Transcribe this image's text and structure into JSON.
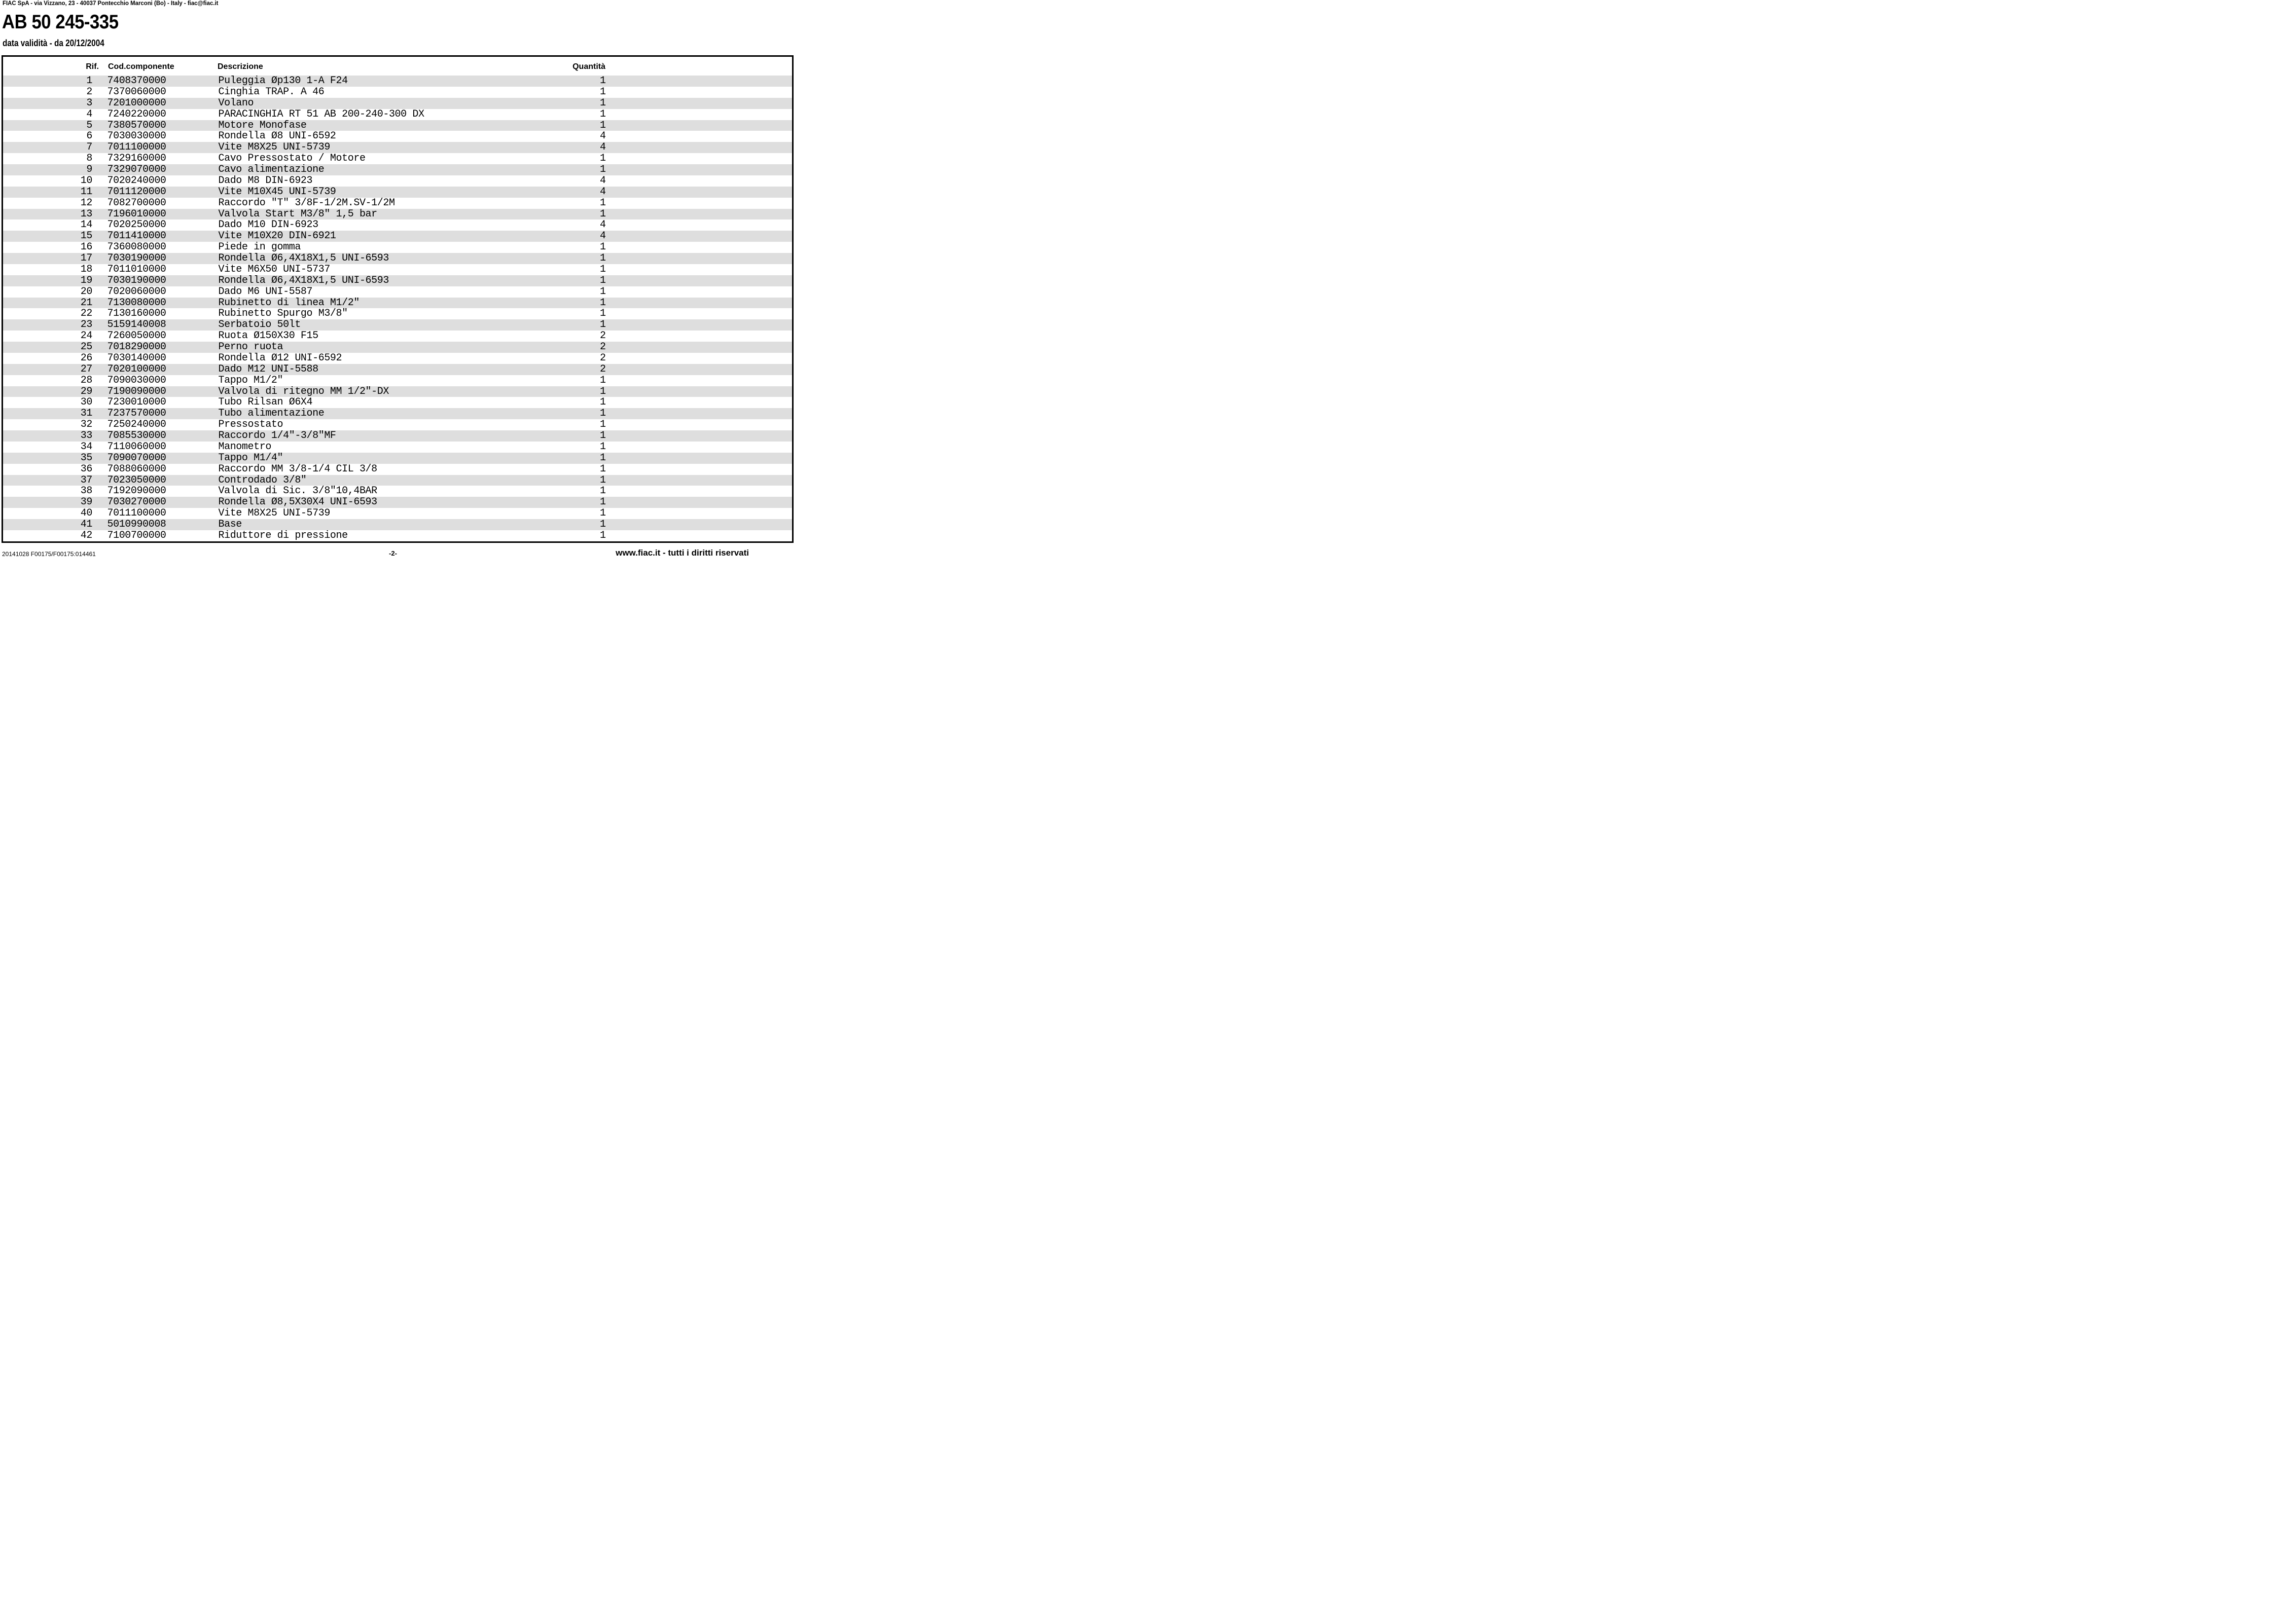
{
  "header": {
    "address_line": "FIAC SpA - via Vizzano, 23 - 40037 Pontecchio Marconi (Bo) - Italy - fiac@fiac.it",
    "title": "AB 50 245-335",
    "validity_line": "data validità - da 20/12/2004"
  },
  "table": {
    "headers": {
      "rif": "Rif.",
      "cod": "Cod.componente",
      "desc": "Descrizione",
      "qty": "Quantità"
    },
    "rows": [
      {
        "rif": "1",
        "cod": "7408370000",
        "desc": "Puleggia Øp130 1-A F24",
        "qty": "1"
      },
      {
        "rif": "2",
        "cod": "7370060000",
        "desc": "Cinghia TRAP. A 46",
        "qty": "1"
      },
      {
        "rif": "3",
        "cod": "7201000000",
        "desc": "Volano",
        "qty": "1"
      },
      {
        "rif": "4",
        "cod": "7240220000",
        "desc": "PARACINGHIA RT 51 AB 200-240-300 DX",
        "qty": "1"
      },
      {
        "rif": "5",
        "cod": "7380570000",
        "desc": "Motore Monofase",
        "qty": "1"
      },
      {
        "rif": "6",
        "cod": "7030030000",
        "desc": "Rondella Ø8 UNI-6592",
        "qty": "4"
      },
      {
        "rif": "7",
        "cod": "7011100000",
        "desc": "Vite M8X25 UNI-5739",
        "qty": "4"
      },
      {
        "rif": "8",
        "cod": "7329160000",
        "desc": "Cavo Pressostato / Motore",
        "qty": "1"
      },
      {
        "rif": "9",
        "cod": "7329070000",
        "desc": "Cavo alimentazione",
        "qty": "1"
      },
      {
        "rif": "10",
        "cod": "7020240000",
        "desc": "Dado M8 DIN-6923",
        "qty": "4"
      },
      {
        "rif": "11",
        "cod": "7011120000",
        "desc": "Vite M10X45 UNI-5739",
        "qty": "4"
      },
      {
        "rif": "12",
        "cod": "7082700000",
        "desc": "Raccordo \"T\" 3/8F-1/2M.SV-1/2M",
        "qty": "1"
      },
      {
        "rif": "13",
        "cod": "7196010000",
        "desc": "Valvola Start M3/8\" 1,5 bar",
        "qty": "1"
      },
      {
        "rif": "14",
        "cod": "7020250000",
        "desc": "Dado M10 DIN-6923",
        "qty": "4"
      },
      {
        "rif": "15",
        "cod": "7011410000",
        "desc": "Vite M10X20 DIN-6921",
        "qty": "4"
      },
      {
        "rif": "16",
        "cod": "7360080000",
        "desc": "Piede in gomma",
        "qty": "1"
      },
      {
        "rif": "17",
        "cod": "7030190000",
        "desc": "Rondella Ø6,4X18X1,5 UNI-6593",
        "qty": "1"
      },
      {
        "rif": "18",
        "cod": "7011010000",
        "desc": "Vite M6X50 UNI-5737",
        "qty": "1"
      },
      {
        "rif": "19",
        "cod": "7030190000",
        "desc": "Rondella Ø6,4X18X1,5 UNI-6593",
        "qty": "1"
      },
      {
        "rif": "20",
        "cod": "7020060000",
        "desc": "Dado M6 UNI-5587",
        "qty": "1"
      },
      {
        "rif": "21",
        "cod": "7130080000",
        "desc": "Rubinetto di linea M1/2\"",
        "qty": "1"
      },
      {
        "rif": "22",
        "cod": "7130160000",
        "desc": "Rubinetto Spurgo M3/8\"",
        "qty": "1"
      },
      {
        "rif": "23",
        "cod": "5159140008",
        "desc": "Serbatoio 50lt",
        "qty": "1"
      },
      {
        "rif": "24",
        "cod": "7260050000",
        "desc": "Ruota Ø150X30 F15",
        "qty": "2"
      },
      {
        "rif": "25",
        "cod": "7018290000",
        "desc": "Perno ruota",
        "qty": "2"
      },
      {
        "rif": "26",
        "cod": "7030140000",
        "desc": "Rondella Ø12 UNI-6592",
        "qty": "2"
      },
      {
        "rif": "27",
        "cod": "7020100000",
        "desc": "Dado M12 UNI-5588",
        "qty": "2"
      },
      {
        "rif": "28",
        "cod": "7090030000",
        "desc": "Tappo M1/2\"",
        "qty": "1"
      },
      {
        "rif": "29",
        "cod": "7190090000",
        "desc": "Valvola di ritegno MM 1/2\"-DX",
        "qty": "1"
      },
      {
        "rif": "30",
        "cod": "7230010000",
        "desc": "Tubo Rilsan Ø6X4",
        "qty": "1"
      },
      {
        "rif": "31",
        "cod": "7237570000",
        "desc": "Tubo alimentazione",
        "qty": "1"
      },
      {
        "rif": "32",
        "cod": "7250240000",
        "desc": "Pressostato",
        "qty": "1"
      },
      {
        "rif": "33",
        "cod": "7085530000",
        "desc": "Raccordo 1/4\"-3/8\"MF",
        "qty": "1"
      },
      {
        "rif": "34",
        "cod": "7110060000",
        "desc": "Manometro",
        "qty": "1"
      },
      {
        "rif": "35",
        "cod": "7090070000",
        "desc": "Tappo M1/4\"",
        "qty": "1"
      },
      {
        "rif": "36",
        "cod": "7088060000",
        "desc": "Raccordo MM 3/8-1/4 CIL 3/8",
        "qty": "1"
      },
      {
        "rif": "37",
        "cod": "7023050000",
        "desc": "Controdado 3/8\"",
        "qty": "1"
      },
      {
        "rif": "38",
        "cod": "7192090000",
        "desc": "Valvola di Sic. 3/8\"10,4BAR",
        "qty": "1"
      },
      {
        "rif": "39",
        "cod": "7030270000",
        "desc": "Rondella Ø8,5X30X4 UNI-6593",
        "qty": "1"
      },
      {
        "rif": "40",
        "cod": "7011100000",
        "desc": "Vite M8X25 UNI-5739",
        "qty": "1"
      },
      {
        "rif": "41",
        "cod": "5010990008",
        "desc": "Base",
        "qty": "1"
      },
      {
        "rif": "42",
        "cod": "7100700000",
        "desc": "Riduttore di pressione",
        "qty": "1"
      }
    ]
  },
  "footer": {
    "left": "20141028 F00175/F00175:014461",
    "center": "-2-",
    "right": "www.fiac.it - tutti i diritti riservati"
  },
  "colors": {
    "stripe": "#dedede",
    "border": "#000000",
    "background": "#ffffff",
    "text": "#000000"
  }
}
